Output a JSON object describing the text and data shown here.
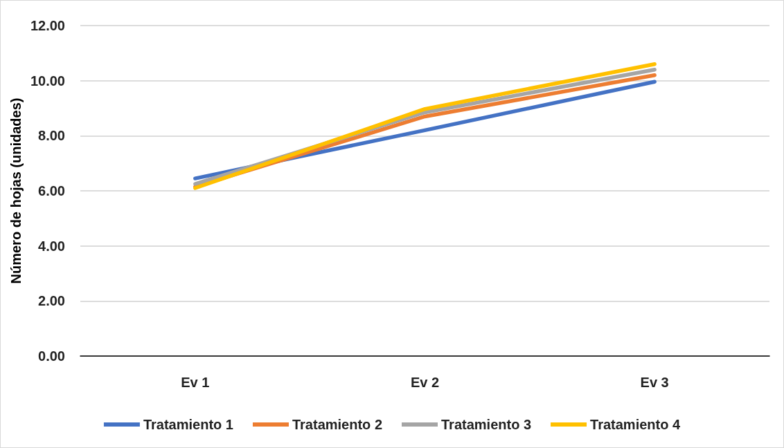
{
  "chart_data": {
    "type": "line",
    "ylabel": "Número de hojas (unidades)",
    "categories": [
      "Ev 1",
      "Ev 2",
      "Ev 3"
    ],
    "series": [
      {
        "name": "Tratamiento 1",
        "color": "#4472c4",
        "values": [
          6.45,
          8.2,
          9.96
        ]
      },
      {
        "name": "Tratamiento 2",
        "color": "#ed7d31",
        "values": [
          6.15,
          8.7,
          10.2
        ]
      },
      {
        "name": "Tratamiento 3",
        "color": "#a5a5a5",
        "values": [
          6.25,
          8.85,
          10.4
        ]
      },
      {
        "name": "Tratamiento 4",
        "color": "#ffc000",
        "values": [
          6.1,
          8.97,
          10.6
        ]
      }
    ],
    "ylim": [
      0,
      12
    ],
    "yticks": [
      {
        "value": 0,
        "label": "0.00"
      },
      {
        "value": 2,
        "label": "2.00"
      },
      {
        "value": 4,
        "label": "4.00"
      },
      {
        "value": 6,
        "label": "6.00"
      },
      {
        "value": 8,
        "label": "8.00"
      },
      {
        "value": 10,
        "label": "10.00"
      },
      {
        "value": 12,
        "label": "12.00"
      }
    ],
    "grid": "y",
    "legend": "bottom",
    "marker": "none",
    "line_style": "solid"
  }
}
